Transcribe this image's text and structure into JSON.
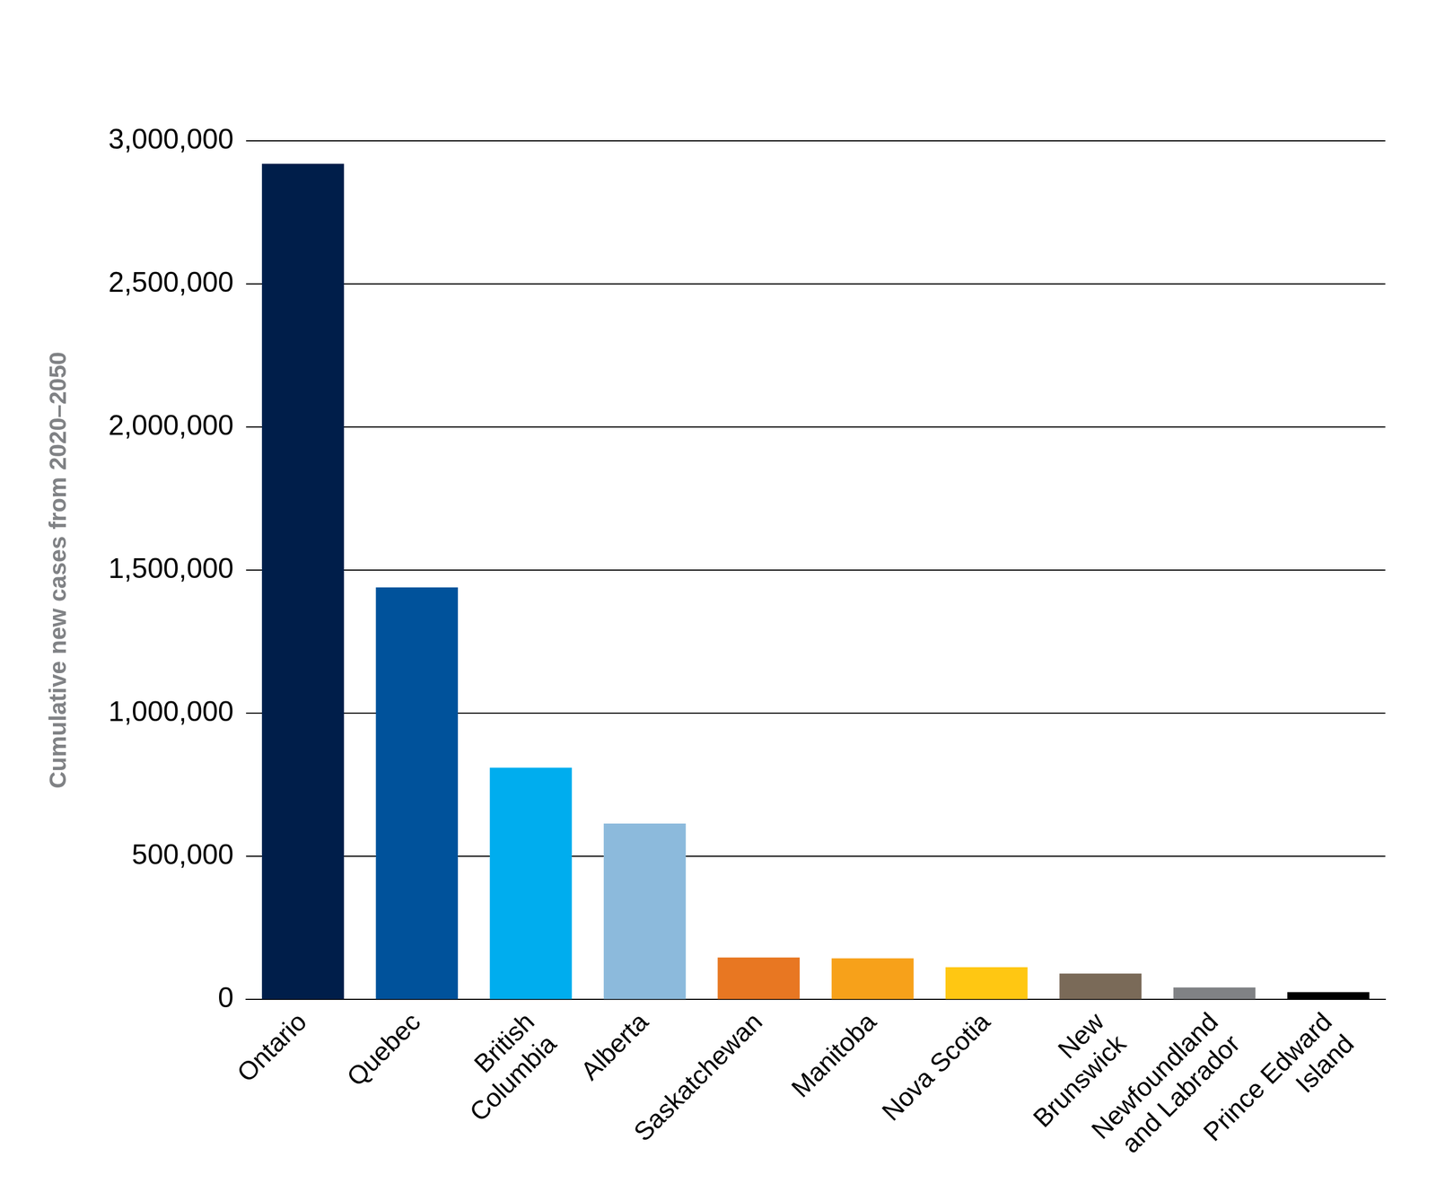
{
  "chart_data": {
    "type": "bar",
    "y_label": "Cumulative new cases from 2020–2050",
    "categories": [
      "Ontario",
      "Quebec",
      "British\nColumbia",
      "Alberta",
      "Saskatchewan",
      "Manitoba",
      "Nova Scotia",
      "New\nBrunswick",
      "Newfoundland\nand Labrador",
      "Prince Edward\nIsland"
    ],
    "values": [
      2920000,
      1440000,
      810000,
      615000,
      147000,
      144000,
      113000,
      91000,
      42000,
      26000
    ],
    "colors": [
      "#001e4a",
      "#00529b",
      "#00adee",
      "#8cbadc",
      "#e87722",
      "#f7a11a",
      "#ffc712",
      "#7a6a58",
      "#808285",
      "#000000"
    ],
    "ylim": [
      0,
      3000000
    ],
    "yticks": [
      0,
      {
        "value": 500000,
        "label": "500,000"
      },
      {
        "value": 1000000,
        "label": "1,000,000"
      },
      {
        "value": 1500000,
        "label": "1,500,000"
      },
      {
        "value": 2000000,
        "label": "2,000,000"
      },
      {
        "value": 2500000,
        "label": "2,500,000"
      },
      {
        "value": 3000000,
        "label": "3,000,000"
      }
    ],
    "grid": true
  }
}
